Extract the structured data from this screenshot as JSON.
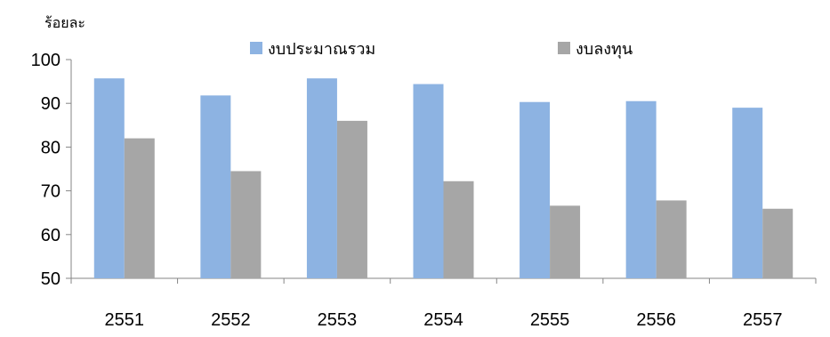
{
  "chart_data": {
    "type": "bar",
    "ylabel": "ร้อยละ",
    "categories": [
      "2551",
      "2552",
      "2553",
      "2554",
      "2555",
      "2556",
      "2557"
    ],
    "series": [
      {
        "name": "งบประมาณรวม",
        "color": "#8db3e2",
        "values": [
          95.7,
          91.8,
          95.7,
          94.4,
          90.3,
          90.5,
          89.0
        ]
      },
      {
        "name": "งบลงทุน",
        "color": "#a6a6a6",
        "values": [
          82.0,
          74.5,
          86.0,
          72.2,
          66.6,
          67.8,
          65.9
        ]
      }
    ],
    "ylim": [
      50,
      100
    ],
    "yticks": [
      50,
      60,
      70,
      80,
      90,
      100
    ],
    "grid": false,
    "legend_position": "top"
  }
}
